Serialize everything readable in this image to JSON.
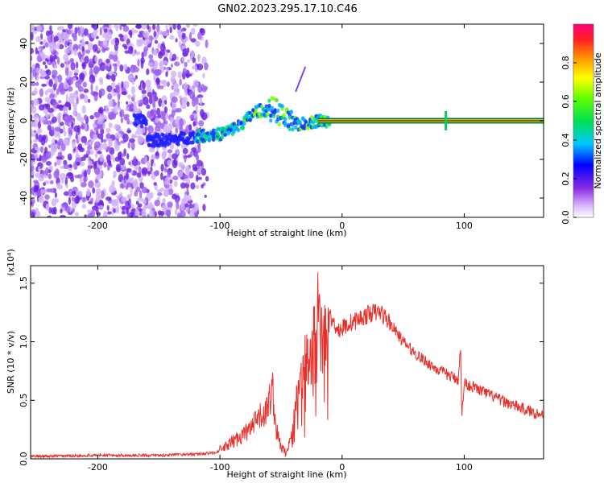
{
  "title": "GN02.2023.295.17.10.C46",
  "chart_data": [
    {
      "type": "heatmap",
      "xlabel": "Height of straight line (km)",
      "ylabel": "Frequency (Hz)",
      "xlim": [
        -255,
        165
      ],
      "ylim": [
        -50,
        50
      ],
      "xticks": [
        -200,
        -100,
        0,
        100
      ],
      "yticks": [
        -40,
        -20,
        0,
        20,
        40
      ],
      "colorbar": {
        "label": "Normalized spectral amplitude",
        "range": [
          0,
          1
        ],
        "ticks": [
          0.0,
          0.2,
          0.4,
          0.6,
          0.8
        ],
        "tick_labels": [
          "0.0",
          "0.2",
          "0.4",
          "0.6",
          "0.8"
        ]
      },
      "trace": [
        {
          "x": -160,
          "y": -10
        },
        {
          "x": -140,
          "y": -10
        },
        {
          "x": -120,
          "y": -8
        },
        {
          "x": -100,
          "y": -7
        },
        {
          "x": -85,
          "y": -3
        },
        {
          "x": -70,
          "y": 5
        },
        {
          "x": -55,
          "y": 6
        },
        {
          "x": -45,
          "y": 0
        },
        {
          "x": -35,
          "y": -2
        },
        {
          "x": -20,
          "y": 0
        },
        {
          "x": 0,
          "y": 0
        },
        {
          "x": 165,
          "y": 0
        }
      ]
    },
    {
      "type": "line",
      "xlabel": "Height of straight line (km)",
      "ylabel": "SNR (10 * v/v)",
      "y_multiplier": "(x10⁴)",
      "xlim": [
        -255,
        165
      ],
      "ylim": [
        0,
        1.65
      ],
      "xticks": [
        -200,
        -100,
        0,
        100
      ],
      "yticks": [
        0.0,
        0.5,
        1.0,
        1.5
      ],
      "ytick_labels": [
        "0.0",
        "0.5",
        "1.0",
        "1.5"
      ],
      "series": [
        {
          "color": "#e8302b",
          "x": [
            -255,
            -200,
            -150,
            -120,
            -105,
            -95,
            -85,
            -75,
            -68,
            -62,
            -57,
            -54,
            -50,
            -46,
            -42,
            -38,
            -34,
            -30,
            -26,
            -22,
            -20,
            -18,
            -14,
            -10,
            -6,
            -2,
            5,
            15,
            25,
            32,
            40,
            50,
            60,
            70,
            80,
            90,
            95,
            97,
            98,
            100,
            110,
            120,
            130,
            140,
            150,
            165
          ],
          "y": [
            0.02,
            0.03,
            0.03,
            0.04,
            0.05,
            0.1,
            0.18,
            0.25,
            0.35,
            0.4,
            0.6,
            0.25,
            0.1,
            0.05,
            0.15,
            0.5,
            0.6,
            0.9,
            0.8,
            1.2,
            1.65,
            1.0,
            1.05,
            1.2,
            1.15,
            1.1,
            1.15,
            1.2,
            1.25,
            1.25,
            1.15,
            1.0,
            0.9,
            0.82,
            0.75,
            0.7,
            0.68,
            0.95,
            0.35,
            0.65,
            0.6,
            0.55,
            0.5,
            0.46,
            0.42,
            0.37
          ]
        }
      ]
    }
  ]
}
